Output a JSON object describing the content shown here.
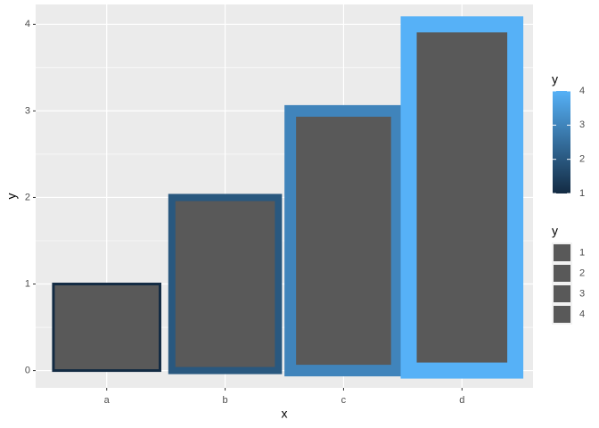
{
  "chart_data": {
    "type": "bar",
    "x_label": "x",
    "y_label": "y",
    "categories": [
      "a",
      "b",
      "c",
      "d"
    ],
    "values": [
      1,
      2,
      3,
      4
    ],
    "fill": "#595959",
    "ylim": [
      -0.2,
      4.23
    ],
    "yticks": [
      0,
      1,
      2,
      3,
      4
    ],
    "yminor": [
      0.5,
      1.5,
      2.5,
      3.5
    ],
    "grid": true,
    "color_low": "#132B43",
    "color_high": "#56B1F7",
    "legends": [
      {
        "title": "y",
        "kind": "colorbar",
        "lim": [
          1,
          4
        ],
        "ticks": [
          1,
          2,
          3,
          4
        ]
      },
      {
        "title": "y",
        "kind": "size",
        "keys": [
          1,
          2,
          3,
          4
        ]
      }
    ]
  }
}
